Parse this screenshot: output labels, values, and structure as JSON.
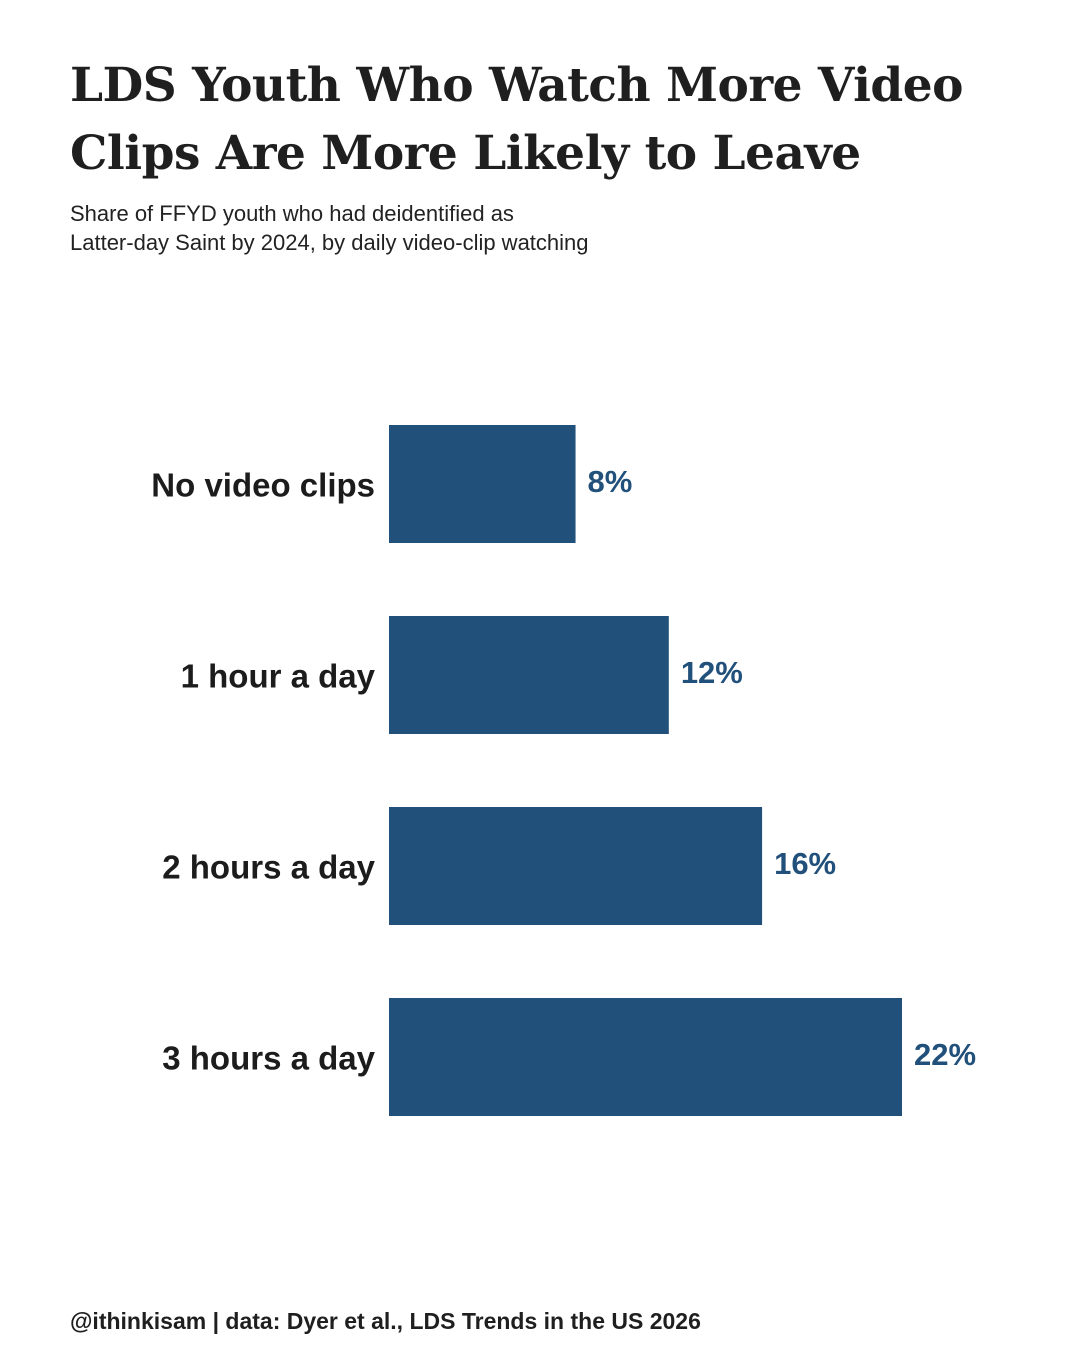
{
  "header": {
    "title": "LDS Youth Who Watch More Video Clips Are More Likely to Leave",
    "subtitle_line1": "Share of FFYD youth who had deidentified as",
    "subtitle_line2": "Latter-day Saint by 2024, by daily video-clip watching"
  },
  "footer": {
    "credit": "@ithinkisam | data: Dyer et al., LDS Trends in the US 2026"
  },
  "colors": {
    "bar": "#21507b",
    "value_label": "#21507b",
    "text": "#1c1c1c"
  },
  "chart_data": {
    "type": "bar",
    "orientation": "horizontal",
    "title": "LDS Youth Who Watch More Video Clips Are More Likely to Leave",
    "subtitle": "Share of FFYD youth who had deidentified as Latter-day Saint by 2024, by daily video-clip watching",
    "xlabel": "",
    "ylabel": "",
    "categories": [
      "No video clips",
      "1 hour a day",
      "2 hours a day",
      "3 hours a day"
    ],
    "values": [
      8,
      12,
      16,
      22
    ],
    "value_labels": [
      "8%",
      "12%",
      "16%",
      "22%"
    ],
    "unit": "%",
    "xlim": [
      0,
      22
    ],
    "grid": false,
    "legend": "none"
  }
}
